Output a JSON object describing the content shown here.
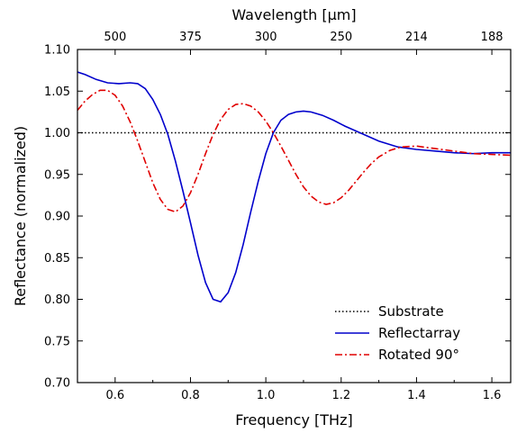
{
  "chart_data": {
    "type": "line",
    "xlabel": "Frequency [THz]",
    "ylabel": "Reflectance (normalized)",
    "top_xlabel": "Wavelength [µm]",
    "xlim": [
      0.5,
      1.65
    ],
    "ylim": [
      0.7,
      1.1
    ],
    "x_ticks": [
      0.6,
      0.8,
      1.0,
      1.2,
      1.4,
      1.6
    ],
    "x_tick_labels": [
      "0.6",
      "0.8",
      "1.0",
      "1.2",
      "1.4",
      "1.6"
    ],
    "y_ticks": [
      0.7,
      0.75,
      0.8,
      0.85,
      0.9,
      0.95,
      1.0,
      1.05,
      1.1
    ],
    "y_tick_labels": [
      "0.70",
      "0.75",
      "0.80",
      "0.85",
      "0.90",
      "0.95",
      "1.00",
      "1.05",
      "1.10"
    ],
    "top_ticks": [
      {
        "at": 0.6,
        "label": "500"
      },
      {
        "at": 0.8,
        "label": "375"
      },
      {
        "at": 1.0,
        "label": "300"
      },
      {
        "at": 1.2,
        "label": "250"
      },
      {
        "at": 1.4,
        "label": "214"
      },
      {
        "at": 1.6,
        "label": "188"
      }
    ],
    "grid": false,
    "legend_position": "bottom-right",
    "series": [
      {
        "name": "Substrate",
        "color": "#000000",
        "style": "dotted",
        "x": [
          0.5,
          1.65
        ],
        "y": [
          1.0,
          1.0
        ]
      },
      {
        "name": "Reflectarray",
        "color": "#0000cc",
        "style": "solid",
        "x": [
          0.5,
          0.52,
          0.55,
          0.58,
          0.61,
          0.64,
          0.66,
          0.68,
          0.7,
          0.72,
          0.74,
          0.76,
          0.78,
          0.8,
          0.82,
          0.84,
          0.86,
          0.88,
          0.9,
          0.92,
          0.94,
          0.96,
          0.98,
          1.0,
          1.02,
          1.04,
          1.06,
          1.08,
          1.1,
          1.12,
          1.15,
          1.18,
          1.21,
          1.25,
          1.3,
          1.35,
          1.4,
          1.45,
          1.5,
          1.55,
          1.6,
          1.65
        ],
        "y": [
          1.073,
          1.07,
          1.064,
          1.06,
          1.059,
          1.06,
          1.059,
          1.053,
          1.04,
          1.022,
          0.998,
          0.966,
          0.93,
          0.892,
          0.853,
          0.82,
          0.8,
          0.797,
          0.808,
          0.832,
          0.866,
          0.905,
          0.942,
          0.975,
          1.0,
          1.015,
          1.022,
          1.025,
          1.026,
          1.025,
          1.021,
          1.015,
          1.008,
          1.0,
          0.99,
          0.983,
          0.98,
          0.978,
          0.976,
          0.975,
          0.976,
          0.976
        ]
      },
      {
        "name": "Rotated 90°",
        "color": "#e00000",
        "style": "dashdot",
        "x": [
          0.5,
          0.52,
          0.54,
          0.56,
          0.58,
          0.6,
          0.62,
          0.64,
          0.66,
          0.68,
          0.7,
          0.72,
          0.74,
          0.76,
          0.78,
          0.8,
          0.82,
          0.84,
          0.86,
          0.88,
          0.9,
          0.92,
          0.94,
          0.96,
          0.98,
          1.0,
          1.02,
          1.04,
          1.06,
          1.08,
          1.1,
          1.12,
          1.14,
          1.16,
          1.18,
          1.2,
          1.22,
          1.24,
          1.26,
          1.28,
          1.3,
          1.33,
          1.36,
          1.4,
          1.45,
          1.5,
          1.55,
          1.6,
          1.65
        ],
        "y": [
          1.027,
          1.038,
          1.046,
          1.051,
          1.051,
          1.045,
          1.032,
          1.013,
          0.99,
          0.965,
          0.94,
          0.92,
          0.908,
          0.905,
          0.912,
          0.928,
          0.95,
          0.975,
          0.998,
          1.016,
          1.028,
          1.034,
          1.035,
          1.032,
          1.025,
          1.014,
          1.0,
          0.984,
          0.967,
          0.95,
          0.935,
          0.924,
          0.917,
          0.914,
          0.916,
          0.922,
          0.931,
          0.942,
          0.953,
          0.963,
          0.971,
          0.979,
          0.983,
          0.984,
          0.981,
          0.978,
          0.975,
          0.974,
          0.973
        ]
      }
    ]
  }
}
